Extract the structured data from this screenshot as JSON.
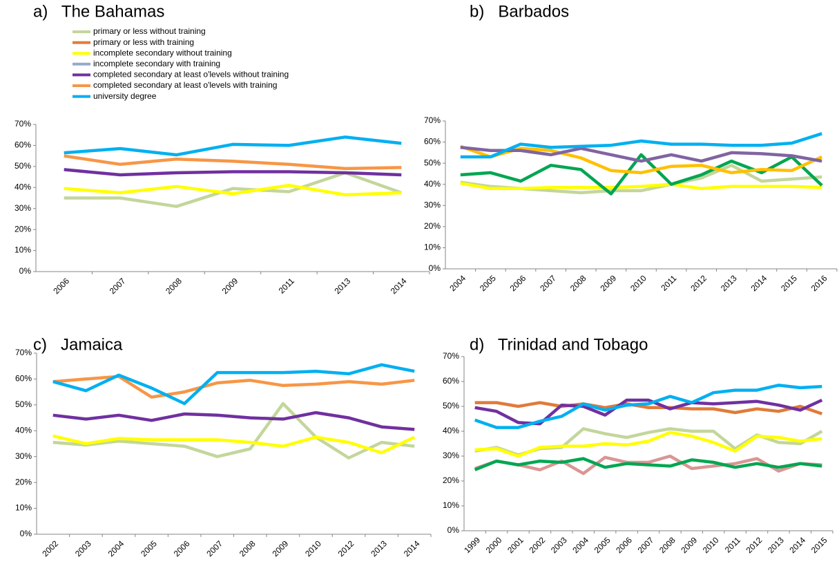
{
  "chart_data": [
    {
      "type": "line",
      "title": "a)   The Bahamas",
      "legend": true,
      "categories": [
        "2006",
        "2007",
        "2008",
        "2009",
        "2011",
        "2013",
        "2014"
      ],
      "ylim": [
        0,
        70
      ],
      "yticks": [
        {
          "value": 0,
          "label": "0%"
        },
        {
          "value": 10,
          "label": "10%"
        },
        {
          "value": 20,
          "label": "20%"
        },
        {
          "value": 30,
          "label": "30%"
        },
        {
          "value": 40,
          "label": "40%"
        },
        {
          "value": 50,
          "label": "50%"
        },
        {
          "value": 60,
          "label": "60%"
        },
        {
          "value": 70,
          "label": "70%"
        }
      ],
      "series": [
        {
          "name": "primary or less without training",
          "color": "#c3d69b",
          "values": [
            35,
            35,
            31,
            39.5,
            38,
            47,
            37.5
          ]
        },
        {
          "name": "primary or less with training",
          "color": "#e07b39",
          "values": [
            null,
            null,
            null,
            null,
            null,
            null,
            null
          ]
        },
        {
          "name": "incomplete secondary without training",
          "color": "#ffff00",
          "values": [
            39.5,
            37.5,
            40.5,
            37,
            41,
            36.5,
            37.5
          ]
        },
        {
          "name": "incomplete secondary with training",
          "color": "#95a9d0",
          "values": [
            null,
            null,
            null,
            null,
            null,
            null,
            null
          ]
        },
        {
          "name": "completed secondary at least o'levels without training",
          "color": "#7030a0",
          "values": [
            48.5,
            46,
            47,
            47.5,
            47.5,
            47,
            46
          ]
        },
        {
          "name": "completed secondary at least o'levels with training",
          "color": "#f79646",
          "values": [
            55,
            51,
            53.5,
            52.5,
            51,
            49,
            49.5
          ]
        },
        {
          "name": "university degree",
          "color": "#00b0f0",
          "values": [
            56.5,
            58.5,
            55.5,
            60.5,
            60,
            64,
            61
          ]
        }
      ]
    },
    {
      "type": "line",
      "title": "b)   Barbados",
      "categories": [
        "2004",
        "2005",
        "2006",
        "2007",
        "2008",
        "2009",
        "2010",
        "2011",
        "2012",
        "2013",
        "2014",
        "2015",
        "2016"
      ],
      "ylim": [
        0,
        70
      ],
      "yticks": [
        {
          "value": 0,
          "label": "0%"
        },
        {
          "value": 10,
          "label": "10%"
        },
        {
          "value": 20,
          "label": "20%"
        },
        {
          "value": 30,
          "label": "30%"
        },
        {
          "value": 40,
          "label": "40%"
        },
        {
          "value": 50,
          "label": "50%"
        },
        {
          "value": 60,
          "label": "60%"
        },
        {
          "value": 70,
          "label": "70%"
        }
      ],
      "series": [
        {
          "color": "#c3d69b",
          "values": [
            41,
            39,
            38,
            37,
            36,
            37,
            37,
            40,
            43,
            49,
            41.5,
            42.5,
            43.5
          ]
        },
        {
          "color": "#ffff00",
          "values": [
            40.5,
            38,
            38,
            38.5,
            38.5,
            38.5,
            39,
            40,
            38,
            39,
            39,
            39,
            38.5
          ]
        },
        {
          "color": "#00a651",
          "values": [
            44.5,
            45.5,
            41.5,
            49,
            47,
            35.5,
            54,
            40,
            44.5,
            51,
            45.5,
            53,
            39.5
          ]
        },
        {
          "color": "#ffc000",
          "values": [
            58,
            53,
            57,
            56,
            52.5,
            46.5,
            45.5,
            48.5,
            49,
            45.5,
            47,
            46.5,
            53
          ]
        },
        {
          "color": "#8064a2",
          "values": [
            57.5,
            56,
            56,
            54,
            57,
            54,
            51,
            54,
            51,
            55,
            54.5,
            53.5,
            51
          ]
        },
        {
          "color": "#00b0f0",
          "values": [
            53,
            53,
            59,
            57.5,
            58,
            58.5,
            60.5,
            59,
            59,
            58.5,
            58.5,
            59.5,
            64
          ]
        }
      ]
    },
    {
      "type": "line",
      "title": "c)   Jamaica",
      "categories": [
        "2002",
        "2003",
        "2004",
        "2005",
        "2006",
        "2007",
        "2008",
        "2009",
        "2010",
        "2012",
        "2013",
        "2014"
      ],
      "ylim": [
        0,
        70
      ],
      "yticks": [
        {
          "value": 0,
          "label": "0%"
        },
        {
          "value": 10,
          "label": "10%"
        },
        {
          "value": 20,
          "label": "20%"
        },
        {
          "value": 30,
          "label": "30%"
        },
        {
          "value": 40,
          "label": "40%"
        },
        {
          "value": 50,
          "label": "50%"
        },
        {
          "value": 60,
          "label": "60%"
        },
        {
          "value": 70,
          "label": "70%"
        }
      ],
      "series": [
        {
          "color": "#c3d69b",
          "values": [
            35.5,
            34.5,
            36,
            35,
            34,
            30,
            33,
            50.5,
            37.5,
            29.5,
            35.5,
            34
          ]
        },
        {
          "color": "#ffff00",
          "values": [
            38,
            35,
            37,
            36.5,
            36.5,
            36.5,
            35.5,
            34,
            37.5,
            35.5,
            31.5,
            37.5
          ]
        },
        {
          "color": "#7030a0",
          "values": [
            46,
            44.5,
            46,
            44,
            46.5,
            46,
            45,
            44.5,
            47,
            45,
            41.5,
            40.5
          ]
        },
        {
          "color": "#f79646",
          "values": [
            59,
            60,
            61,
            53,
            55,
            58.5,
            59.5,
            57.5,
            58,
            59,
            58,
            59.5
          ]
        },
        {
          "color": "#00b0f0",
          "values": [
            59,
            55.5,
            61.5,
            56.5,
            50.5,
            62.5,
            62.5,
            62.5,
            63,
            62,
            65.5,
            63
          ]
        }
      ]
    },
    {
      "type": "line",
      "title": "d)   Trinidad and Tobago",
      "categories": [
        "1999",
        "2000",
        "2001",
        "2002",
        "2003",
        "2004",
        "2005",
        "2006",
        "2007",
        "2008",
        "2009",
        "2010",
        "2011",
        "2012",
        "2013",
        "2014",
        "2015"
      ],
      "ylim": [
        0,
        70
      ],
      "yticks": [
        {
          "value": 0,
          "label": "0%"
        },
        {
          "value": 10,
          "label": "10%"
        },
        {
          "value": 20,
          "label": "20%"
        },
        {
          "value": 30,
          "label": "30%"
        },
        {
          "value": 40,
          "label": "40%"
        },
        {
          "value": 50,
          "label": "50%"
        },
        {
          "value": 60,
          "label": "60%"
        },
        {
          "value": 70,
          "label": "70%"
        }
      ],
      "series": [
        {
          "color": "#c3d69b",
          "values": [
            32,
            33.5,
            30.5,
            33,
            33.5,
            41,
            39,
            37.5,
            39.5,
            41,
            40,
            40,
            33,
            38.5,
            35.5,
            35,
            40
          ]
        },
        {
          "color": "#d99694",
          "values": [
            25,
            28,
            26.5,
            24.5,
            28,
            23,
            29.5,
            27.5,
            27.5,
            30,
            25,
            26,
            27,
            29,
            24,
            27,
            26.5
          ]
        },
        {
          "color": "#00a651",
          "values": [
            24.5,
            28,
            26.5,
            28,
            27.5,
            29,
            25.5,
            27,
            26.5,
            26,
            28.5,
            27.5,
            25.5,
            27,
            25.5,
            27,
            26
          ]
        },
        {
          "color": "#ffff00",
          "values": [
            32.5,
            33,
            30,
            33.5,
            34,
            34,
            35,
            34.5,
            36,
            39.5,
            38,
            35.5,
            32,
            38,
            37.5,
            36,
            37
          ]
        },
        {
          "color": "#e07b39",
          "values": [
            51.5,
            51.5,
            50,
            51.5,
            50,
            51,
            49.5,
            51,
            49.5,
            49.5,
            49,
            49,
            47.5,
            49,
            48,
            50,
            47
          ]
        },
        {
          "color": "#7030a0",
          "values": [
            49.5,
            48,
            43.5,
            43,
            50.5,
            50,
            46.5,
            52.5,
            52.5,
            49,
            51.5,
            51,
            51.5,
            52,
            50.5,
            48.5,
            52.5
          ]
        },
        {
          "color": "#00b0f0",
          "values": [
            44.5,
            41.5,
            41.5,
            44,
            46,
            51,
            48.5,
            50.5,
            51,
            54,
            51.5,
            55.5,
            56.5,
            56.5,
            58.5,
            57.5,
            58
          ]
        }
      ]
    }
  ]
}
